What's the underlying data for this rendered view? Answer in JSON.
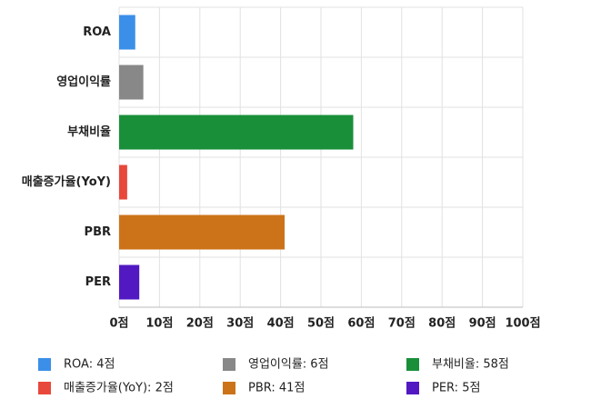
{
  "chart_data": {
    "type": "bar",
    "orientation": "horizontal",
    "categories": [
      "ROA",
      "영업이익률",
      "부채비율",
      "매출증가율(YoY)",
      "PBR",
      "PER"
    ],
    "values": [
      4,
      6,
      58,
      2,
      41,
      5
    ],
    "colors": [
      "#3b8fe8",
      "#888888",
      "#1a8f3a",
      "#e8483b",
      "#cc7319",
      "#5219c2"
    ],
    "legend_labels": [
      "ROA: 4점",
      "영업이익률: 6점",
      "부채비율: 58점",
      "매출증가율(YoY): 2점",
      "PBR: 41점",
      "PER: 5점"
    ],
    "xlim": [
      0,
      100
    ],
    "xticks": [
      {
        "value": 0,
        "label": "0점"
      },
      {
        "value": 10,
        "label": "10점"
      },
      {
        "value": 20,
        "label": "20점"
      },
      {
        "value": 30,
        "label": "30점"
      },
      {
        "value": 40,
        "label": "40점"
      },
      {
        "value": 50,
        "label": "50점"
      },
      {
        "value": 60,
        "label": "60점"
      },
      {
        "value": 70,
        "label": "70점"
      },
      {
        "value": 80,
        "label": "80점"
      },
      {
        "value": 90,
        "label": "90점"
      },
      {
        "value": 100,
        "label": "100점"
      }
    ],
    "grid": true
  }
}
